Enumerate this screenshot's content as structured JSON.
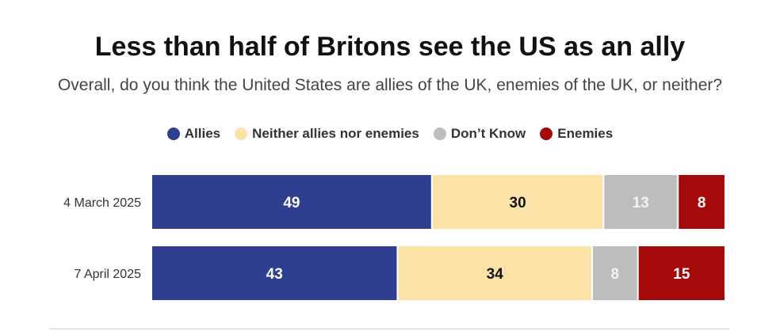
{
  "chart_data": {
    "type": "bar",
    "orientation": "horizontal",
    "stacked": true,
    "title": "Less than half of Britons see the US as an ally",
    "subtitle": "Overall, do you think the United States are allies of the UK, enemies of the UK, or neither?",
    "categories": [
      "4 March 2025",
      "7 April 2025"
    ],
    "series": [
      {
        "name": "Allies",
        "values": [
          49,
          43
        ],
        "color": "#2e3f8f",
        "label_color": "#ffffff"
      },
      {
        "name": "Neither allies nor enemies",
        "values": [
          30,
          34
        ],
        "color": "#fbe3a8",
        "label_color": "#111111"
      },
      {
        "name": "Don’t Know",
        "values": [
          13,
          8
        ],
        "color": "#bdbdbd",
        "label_color": "#f2f2f2"
      },
      {
        "name": "Enemies",
        "values": [
          8,
          15
        ],
        "color": "#a50a0a",
        "label_color": "#ffffff"
      }
    ],
    "xlim": [
      0,
      100
    ],
    "legend_position": "top-center",
    "grid": false
  }
}
